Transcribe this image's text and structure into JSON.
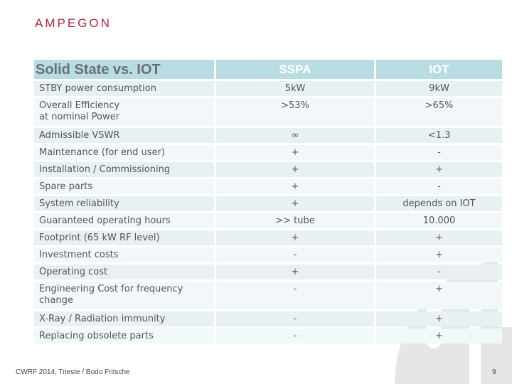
{
  "logo": "AMPEGON",
  "table": {
    "header": [
      "Solid State vs. IOT",
      "SSPA",
      "IOT"
    ],
    "rows": [
      [
        "STBY power consumption",
        "5kW",
        "9kW"
      ],
      [
        "Overall Efficiency\nat nominal Power",
        ">53%",
        ">65%"
      ],
      [
        "Admissible VSWR",
        "∞",
        "<1.3"
      ],
      [
        "Maintenance (for end user)",
        "+",
        "-"
      ],
      [
        "Installation / Commissioning",
        "+",
        "+"
      ],
      [
        "Spare parts",
        "+",
        "-"
      ],
      [
        "System reliability",
        "+",
        "depends on IOT"
      ],
      [
        "Guaranteed operating hours",
        ">> tube",
        "10.000"
      ],
      [
        "Footprint (65 kW RF level)",
        "+",
        "+"
      ],
      [
        "Investment costs",
        "-",
        "+"
      ],
      [
        "Operating cost",
        "+",
        "-"
      ],
      [
        "Engineering Cost for frequency change",
        "-",
        "+"
      ],
      [
        "X-Ray / Radiation immunity",
        "-",
        "+"
      ],
      [
        "Replacing obsolete parts",
        "-",
        "+"
      ]
    ]
  },
  "footer": "CWRF 2014, Trieste / Bodo Fritsche",
  "page_number": "9",
  "colors": {
    "brand": "#b0283a",
    "header_bg": "#b7dde3",
    "row_dark": "#e7f1f4",
    "row_light": "#f2f7f9"
  }
}
